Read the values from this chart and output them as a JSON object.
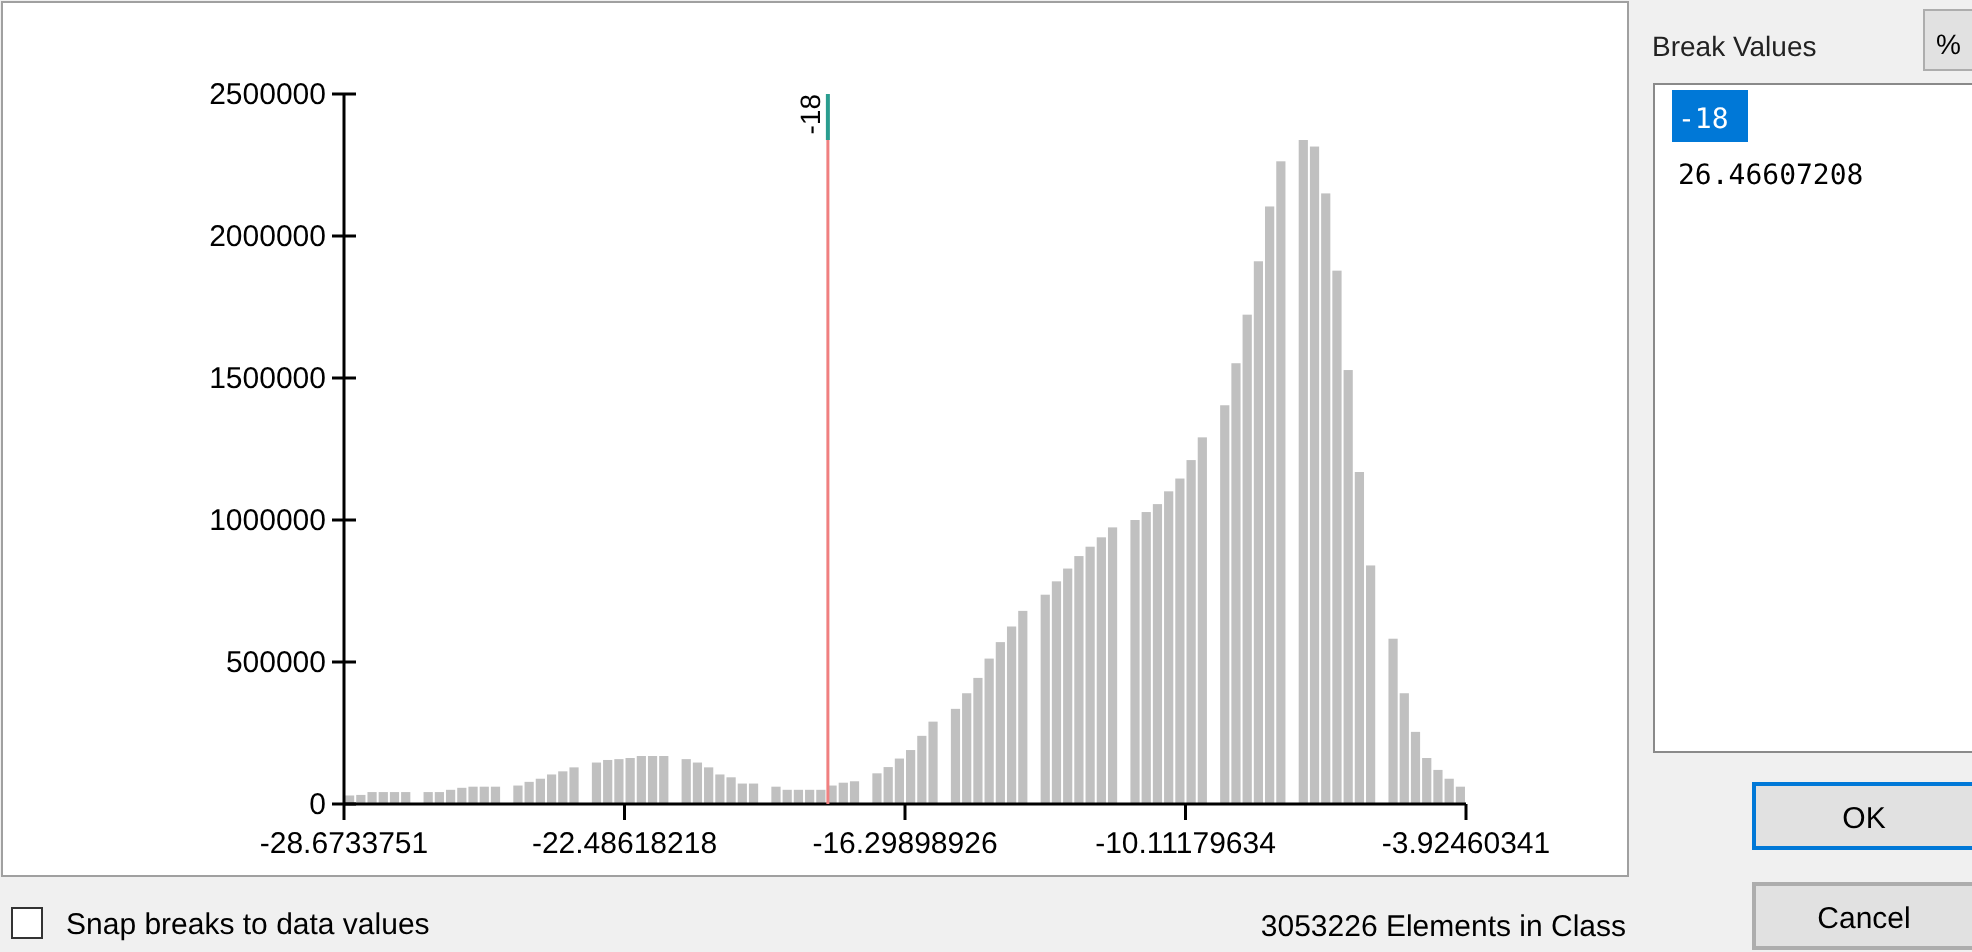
{
  "chart_data": {
    "type": "histogram",
    "bins": [
      -28.673,
      -28.426,
      -28.178,
      -27.931,
      -27.683,
      -27.436,
      -27.188,
      -26.941,
      -26.693,
      -26.446,
      -26.198,
      -25.951,
      -25.703,
      -25.456,
      -25.208,
      -24.961,
      -24.713,
      -24.466,
      -24.218,
      -23.971,
      -23.723,
      -23.476,
      -23.228,
      -22.981,
      -22.733,
      -22.486,
      -22.238,
      -21.991,
      -21.744,
      -21.496,
      -21.249,
      -21.001,
      -20.754,
      -20.506,
      -20.259,
      -20.011,
      -19.764,
      -19.516,
      -19.269,
      -19.021,
      -18.774,
      -18.526,
      -18.279,
      -18.031,
      -17.784,
      -17.536,
      -17.289,
      -17.041,
      -16.794,
      -16.546,
      -16.299,
      -16.051,
      -15.804,
      -15.557,
      -15.309,
      -15.062,
      -14.814,
      -14.567,
      -14.319,
      -14.072,
      -13.824,
      -13.577,
      -13.329,
      -13.082,
      -12.834,
      -12.587,
      -12.339,
      -12.092,
      -11.844,
      -11.597,
      -11.349,
      -11.102,
      -10.854,
      -10.607,
      -10.359,
      -10.112,
      -9.864,
      -9.617,
      -9.37,
      -9.122,
      -8.875,
      -8.627,
      -8.38,
      -8.132,
      -7.885,
      -7.637,
      -7.39,
      -7.142,
      -6.895,
      -6.647,
      -6.4,
      -6.152,
      -5.905,
      -5.657,
      -5.41,
      -5.162,
      -4.915,
      -4.667,
      -4.42,
      -4.172,
      -3.925
    ],
    "values": [
      30000,
      32000,
      42000,
      42000,
      42000,
      42000,
      0,
      42000,
      42000,
      50000,
      57000,
      61000,
      61000,
      61000,
      0,
      65000,
      78000,
      89000,
      104000,
      115000,
      129000,
      0,
      146000,
      155000,
      158000,
      162000,
      169000,
      169000,
      169000,
      0,
      158000,
      146000,
      129000,
      104000,
      94000,
      72000,
      72000,
      0,
      61000,
      50000,
      50000,
      50000,
      50000,
      65000,
      75000,
      80000,
      0,
      108000,
      130000,
      160000,
      190000,
      240000,
      290000,
      0,
      335000,
      390000,
      444000,
      512000,
      570000,
      625000,
      680000,
      0,
      737000,
      784000,
      829000,
      873000,
      906000,
      939000,
      974000,
      0,
      1000000,
      1028000,
      1056000,
      1101000,
      1146000,
      1211000,
      1291000,
      0,
      1404000,
      1552000,
      1723000,
      1911000,
      2104000,
      2263000,
      0,
      2338000,
      2315000,
      2150000,
      1878000,
      1528000,
      1169000,
      840000,
      0,
      582000,
      390000,
      254000,
      162000,
      120000,
      89000,
      61000
    ],
    "color": "#c0c0c0",
    "xlim": [
      -28.6733751,
      -3.92460341
    ],
    "xticks": [
      -28.6733751,
      -22.48618218,
      -16.29898926,
      -10.11179634,
      -3.92460341
    ],
    "ylim": [
      0,
      2500000
    ],
    "yticks": [
      0,
      500000,
      1000000,
      1500000,
      2000000,
      2500000
    ],
    "ref_lines": [
      {
        "axis": "x",
        "value": -18,
        "label": "-18",
        "color": "#f08080"
      }
    ],
    "annotations": [
      "Break Values",
      "%",
      "-18",
      "26.46607208",
      "OK",
      "Cancel",
      "Snap breaks to data values",
      "3053226 Elements in Class"
    ]
  }
}
